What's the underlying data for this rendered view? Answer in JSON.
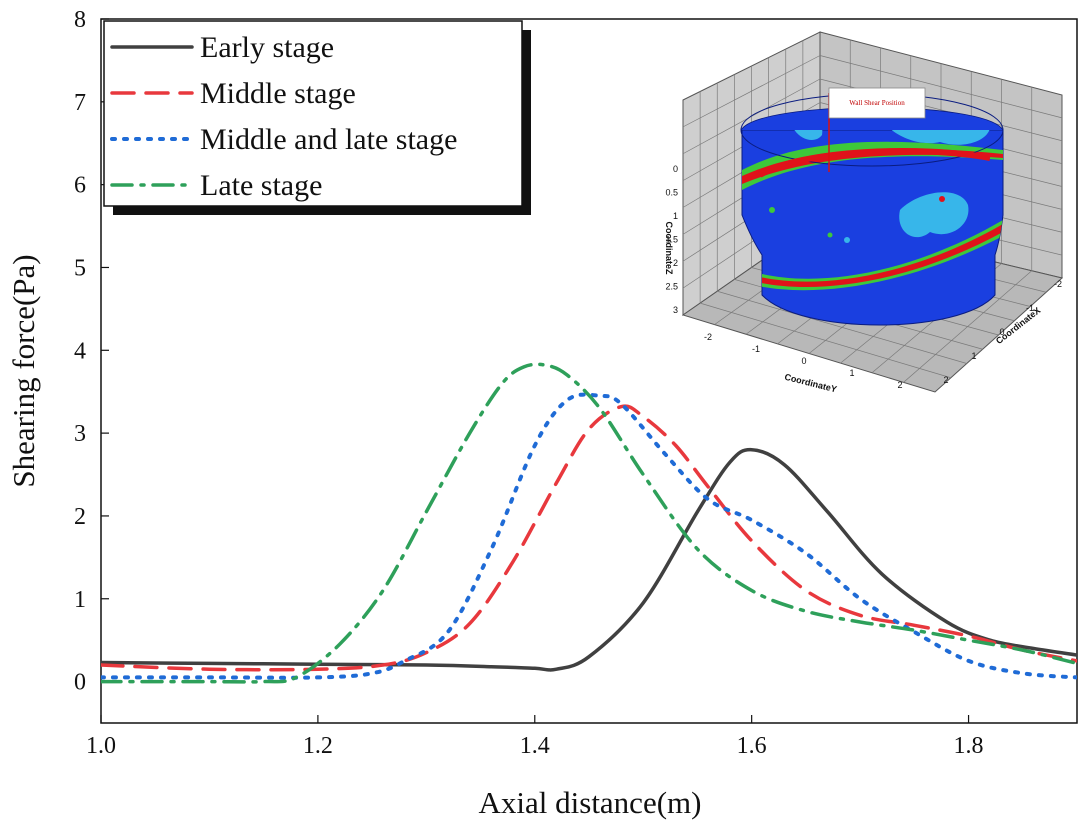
{
  "chart_data": {
    "type": "line",
    "title": "",
    "xlabel": "Axial distance(m)",
    "ylabel": "Shearing force(Pa)",
    "xlim": [
      1.0,
      1.9
    ],
    "ylim": [
      -0.5,
      8
    ],
    "x_ticks": [
      1.0,
      1.2,
      1.4,
      1.6,
      1.8
    ],
    "x_tick_labels": [
      "1.0",
      "1.2",
      "1.4",
      "1.6",
      "1.8"
    ],
    "y_ticks": [
      0,
      1,
      2,
      3,
      4,
      5,
      6,
      7,
      8
    ],
    "y_tick_labels": [
      "0",
      "1",
      "2",
      "3",
      "4",
      "5",
      "6",
      "7",
      "8"
    ],
    "legend_position": "top-left",
    "series": [
      {
        "name": "Early stage",
        "style": "solid",
        "color": "#404040",
        "x": [
          1.0,
          1.1,
          1.2,
          1.3,
          1.36,
          1.4,
          1.42,
          1.45,
          1.5,
          1.55,
          1.58,
          1.6,
          1.63,
          1.67,
          1.72,
          1.78,
          1.82,
          1.86,
          1.9
        ],
        "y": [
          0.23,
          0.22,
          0.21,
          0.2,
          0.18,
          0.16,
          0.15,
          0.3,
          0.95,
          2.05,
          2.65,
          2.8,
          2.62,
          2.05,
          1.3,
          0.72,
          0.5,
          0.4,
          0.32
        ]
      },
      {
        "name": "Middle stage",
        "style": "dashed",
        "color": "#e8383d",
        "x": [
          1.0,
          1.1,
          1.2,
          1.26,
          1.3,
          1.34,
          1.38,
          1.42,
          1.45,
          1.48,
          1.5,
          1.53,
          1.56,
          1.6,
          1.65,
          1.7,
          1.75,
          1.8,
          1.85,
          1.9
        ],
        "y": [
          0.2,
          0.15,
          0.15,
          0.2,
          0.35,
          0.7,
          1.45,
          2.4,
          3.05,
          3.32,
          3.2,
          2.85,
          2.35,
          1.7,
          1.1,
          0.8,
          0.68,
          0.55,
          0.38,
          0.25
        ]
      },
      {
        "name": "Middle and late stage",
        "style": "dotted",
        "color": "#1f6bd6",
        "x": [
          1.0,
          1.1,
          1.2,
          1.25,
          1.28,
          1.32,
          1.36,
          1.4,
          1.43,
          1.46,
          1.48,
          1.52,
          1.56,
          1.6,
          1.65,
          1.7,
          1.75,
          1.8,
          1.85,
          1.9
        ],
        "y": [
          0.05,
          0.05,
          0.05,
          0.1,
          0.25,
          0.6,
          1.6,
          2.85,
          3.4,
          3.45,
          3.35,
          2.75,
          2.2,
          1.95,
          1.55,
          1.0,
          0.6,
          0.25,
          0.1,
          0.05
        ]
      },
      {
        "name": "Late stage",
        "style": "dashdot",
        "color": "#2ea05a",
        "x": [
          1.0,
          1.05,
          1.1,
          1.15,
          1.18,
          1.22,
          1.26,
          1.3,
          1.34,
          1.37,
          1.39,
          1.41,
          1.43,
          1.46,
          1.5,
          1.55,
          1.6,
          1.65,
          1.7,
          1.75,
          1.8,
          1.85,
          1.9
        ],
        "y": [
          0.0,
          0.0,
          0.0,
          0.0,
          0.05,
          0.45,
          1.1,
          2.05,
          3.0,
          3.6,
          3.8,
          3.82,
          3.7,
          3.3,
          2.5,
          1.6,
          1.1,
          0.85,
          0.72,
          0.62,
          0.5,
          0.38,
          0.22
        ]
      }
    ]
  },
  "inset": {
    "callout_label": "Wall Shear Position",
    "axis_x_label": "CoordinateX",
    "axis_y_label": "CoordinateY",
    "axis_z_label": "CoordinateZ",
    "z_ticks": [
      "0",
      "0.5",
      "1",
      "1.5",
      "2",
      "2.5",
      "3"
    ],
    "y_ticks": [
      "-2",
      "-1",
      "0",
      "1",
      "2"
    ],
    "x_ticks": [
      "-2",
      "-1",
      "0",
      "1",
      "2"
    ],
    "colors": {
      "base": "#1a3fe0",
      "light": "#37b6ea",
      "green": "#3ec83a",
      "red": "#e0121a"
    }
  }
}
